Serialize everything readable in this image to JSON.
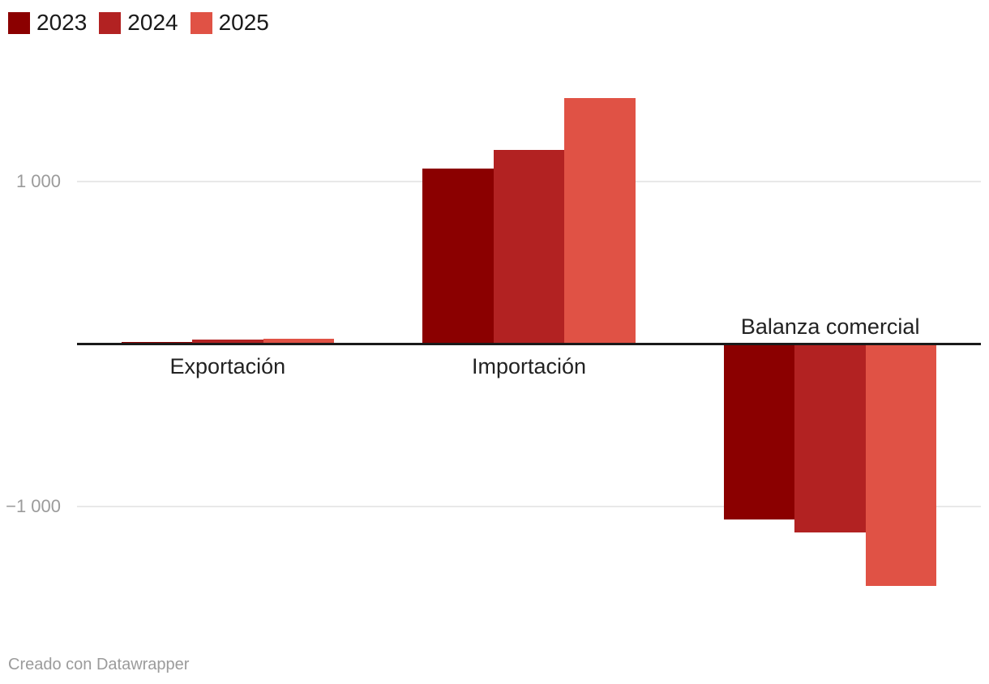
{
  "chart_data": {
    "type": "bar",
    "categories": [
      "Exportación",
      "Importación",
      "Balanza comercial"
    ],
    "series": [
      {
        "name": "2023",
        "color": "#8b0000",
        "values": [
          10,
          1080,
          -1080
        ]
      },
      {
        "name": "2024",
        "color": "#b22222",
        "values": [
          25,
          1190,
          -1160
        ]
      },
      {
        "name": "2025",
        "color": "#e05245",
        "values": [
          30,
          1510,
          -1490
        ]
      }
    ],
    "yticks": [
      {
        "value": 1000,
        "label": "1 000"
      },
      {
        "value": -1000,
        "label": "−1 000"
      }
    ],
    "ylim": [
      -1600,
      1600
    ],
    "grid": true,
    "legend_position": "top-left",
    "title": "",
    "xlabel": "",
    "ylabel": ""
  },
  "colors": {
    "background": "#ffffff",
    "axis_line": "#1a1a1a",
    "gridline": "#e8e8e8",
    "tick_text": "#9b9b9b",
    "category_text": "#222222",
    "legend_text": "#1a1a1a",
    "footer_text": "#9b9b9b"
  },
  "footer": {
    "credit": "Creado con Datawrapper"
  }
}
